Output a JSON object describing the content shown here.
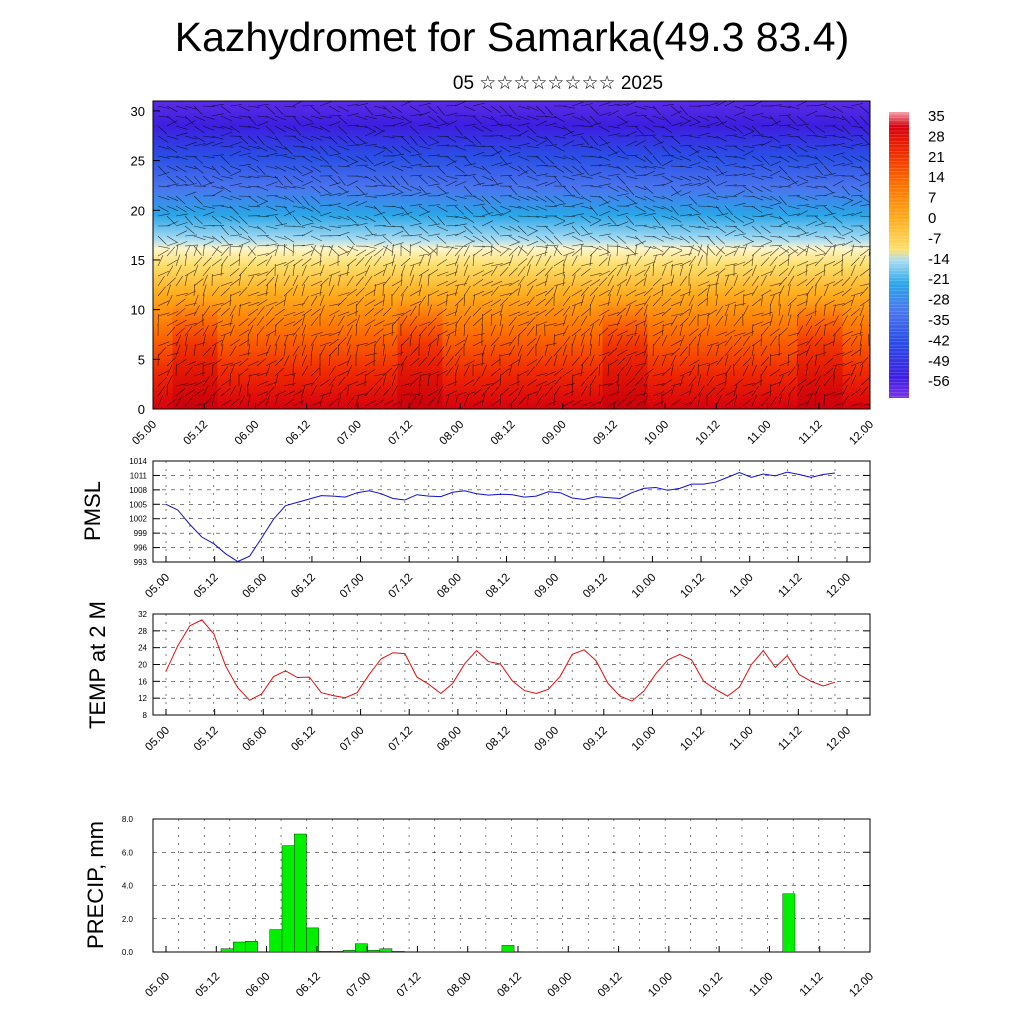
{
  "title": "Kazhydromet for Samarka(49.3 83.4)",
  "subtitle": "05 ☆☆☆☆☆☆☆☆ 2025",
  "chart_data": [
    {
      "type": "heatmap",
      "description_free": true,
      "x_tick_labels": [
        "05.00",
        "05.12",
        "06.00",
        "06.12",
        "07.00",
        "07.12",
        "08.00",
        "08.12",
        "09.00",
        "09.12",
        "10.00",
        "10.12",
        "11.00",
        "11.12",
        "12.00"
      ],
      "y_tick_labels": [
        "0",
        "5",
        "10",
        "15",
        "20",
        "25",
        "30"
      ],
      "ylim": [
        0,
        31
      ],
      "colorbar_labels": [
        "35",
        "28",
        "21",
        "14",
        "7",
        "0",
        "-7",
        "-14",
        "-21",
        "-28",
        "-35",
        "-42",
        "-49",
        "-56"
      ],
      "colors": {
        "hot": "#d7000f",
        "orange": "#ff8a00",
        "yellow": "#ffe070",
        "light_blue": "#a9dcf2",
        "cyan": "#2aa6e8",
        "blue": "#2a4ee6",
        "deep_blue": "#3d1ee0",
        "violet": "#7a33e8"
      }
    },
    {
      "type": "line",
      "ylabel": "PMSL",
      "color": "#1010d0",
      "ylim": [
        993,
        1014
      ],
      "y_ticks": [
        "993",
        "996",
        "999",
        "1002",
        "1005",
        "1008",
        "1011",
        "1014"
      ],
      "x_tick_labels": [
        "05.00",
        "05.12",
        "06.00",
        "06.12",
        "07.00",
        "07.12",
        "08.00",
        "08.12",
        "09.00",
        "09.12",
        "10.00",
        "10.12",
        "11.00",
        "11.12",
        "12.00"
      ],
      "x": [
        0,
        3,
        6,
        9,
        12,
        15,
        18,
        21,
        24,
        27,
        30,
        33,
        36,
        39,
        42,
        45,
        48,
        51,
        54,
        57,
        60,
        63,
        66,
        69,
        72,
        75,
        78,
        81,
        84,
        87,
        90,
        93,
        96,
        99,
        102,
        105,
        108,
        111,
        114,
        117,
        120,
        123,
        126,
        129,
        132,
        135,
        138,
        141,
        144,
        147,
        150,
        153,
        156,
        159,
        162,
        165,
        168
      ],
      "values": [
        1005,
        1003.8,
        1000.8,
        998.2,
        996.8,
        994.7,
        993.1,
        994.2,
        998,
        1001.9,
        1004.7,
        1005.4,
        1006.1,
        1006.8,
        1006.7,
        1006.5,
        1007.4,
        1007.8,
        1007.2,
        1006.2,
        1005.9,
        1007,
        1006.7,
        1006.6,
        1007.5,
        1007.8,
        1007.2,
        1006.9,
        1007.1,
        1007,
        1006.5,
        1006.7,
        1007.6,
        1007.4,
        1006.3,
        1006,
        1006.6,
        1006.4,
        1006.2,
        1007.4,
        1008.3,
        1008.5,
        1007.9,
        1008.3,
        1009.2,
        1009.2,
        1009.6,
        1010.6,
        1011.6,
        1010.6,
        1011.3,
        1010.9,
        1011.7,
        1011.2,
        1010.6,
        1011.2,
        1011.5
      ]
    },
    {
      "type": "line",
      "ylabel": "TEMP at 2 M",
      "color": "#e01010",
      "ylim": [
        8,
        32
      ],
      "y_ticks": [
        "8",
        "12",
        "16",
        "20",
        "24",
        "28",
        "32"
      ],
      "x_tick_labels": [
        "05.00",
        "05.12",
        "06.00",
        "06.12",
        "07.00",
        "07.12",
        "08.00",
        "08.12",
        "09.00",
        "09.12",
        "10.00",
        "10.12",
        "11.00",
        "11.12",
        "12.00"
      ],
      "x": [
        0,
        3,
        6,
        9,
        12,
        15,
        18,
        21,
        24,
        27,
        30,
        33,
        36,
        39,
        42,
        45,
        48,
        51,
        54,
        57,
        60,
        63,
        66,
        69,
        72,
        75,
        78,
        81,
        84,
        87,
        90,
        93,
        96,
        99,
        102,
        105,
        108,
        111,
        114,
        117,
        120,
        123,
        126,
        129,
        132,
        135,
        138,
        141,
        144,
        147,
        150,
        153,
        156,
        159,
        162,
        165,
        168
      ],
      "values": [
        18.4,
        24.5,
        29.2,
        30.6,
        27.3,
        19.6,
        14.5,
        11.5,
        13,
        17.1,
        18.5,
        16.9,
        17,
        13.3,
        12.6,
        12.1,
        13.3,
        17.6,
        21.3,
        22.8,
        22.6,
        17,
        15.3,
        13.1,
        15.5,
        20.2,
        23.3,
        20.7,
        20.1,
        16.1,
        13.8,
        13.1,
        14.1,
        17.2,
        22.4,
        23.5,
        20.9,
        15.5,
        12.5,
        11.3,
        13.7,
        17.8,
        21.1,
        22.4,
        21.1,
        16,
        14.1,
        12.5,
        14.6,
        20,
        23.3,
        19.3,
        22.1,
        17.6,
        16,
        14.9,
        15.8
      ]
    },
    {
      "type": "bar",
      "ylabel": "PRECIP, mm",
      "color": "#00f000",
      "ylim": [
        0,
        8
      ],
      "y_ticks": [
        "0.0",
        "2.0",
        "4.0",
        "6.0",
        "8.0"
      ],
      "x_tick_labels": [
        "05.00",
        "05.12",
        "06.00",
        "06.12",
        "07.00",
        "07.12",
        "08.00",
        "08.12",
        "09.00",
        "09.12",
        "10.00",
        "10.12",
        "11.00",
        "11.12",
        "12.00"
      ],
      "x": [
        15,
        18,
        21,
        27,
        30,
        33,
        36,
        39,
        42,
        45,
        48,
        51,
        54,
        57,
        84,
        153
      ],
      "values": [
        0.2,
        0.6,
        0.65,
        1.35,
        6.4,
        7.1,
        1.45,
        0.05,
        0.05,
        0.1,
        0.5,
        0.1,
        0.2,
        0.05,
        0.4,
        3.5
      ]
    }
  ]
}
